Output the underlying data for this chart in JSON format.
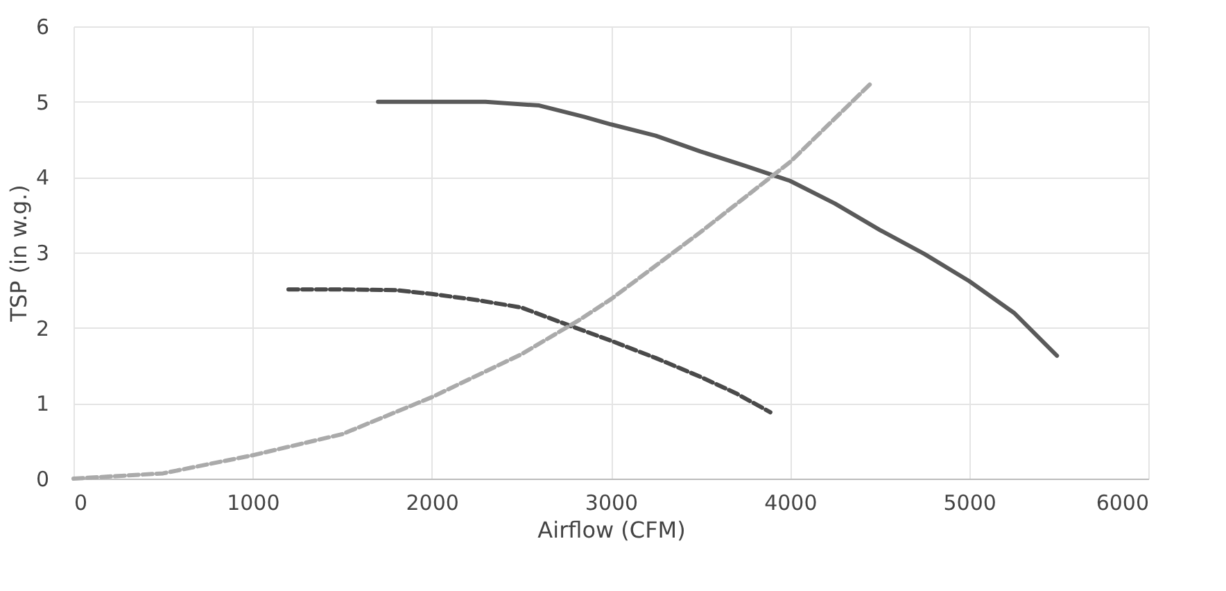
{
  "chart_data": {
    "type": "line",
    "xlabel": "Airflow (CFM)",
    "ylabel": "TSP (in w.g.)",
    "xlim": [
      0,
      6000
    ],
    "ylim": [
      0,
      6
    ],
    "xticks": [
      0,
      1000,
      2000,
      3000,
      4000,
      5000,
      6000
    ],
    "yticks": [
      0,
      1,
      2,
      3,
      4,
      5,
      6
    ],
    "grid": true,
    "legend": false,
    "marker": "none",
    "series": [
      {
        "color": "#5a5a5a",
        "line_style": "solid",
        "x": [
          1700,
          2000,
          2300,
          2600,
          2850,
          3000,
          3250,
          3500,
          3750,
          3900,
          4000,
          4250,
          4500,
          4750,
          5000,
          5250,
          5490
        ],
        "values": [
          5.0,
          5.0,
          5.0,
          4.95,
          4.8,
          4.7,
          4.55,
          4.34,
          4.15,
          4.03,
          3.95,
          3.65,
          3.3,
          2.98,
          2.62,
          2.2,
          1.63
        ]
      },
      {
        "color": "#4a4a4a",
        "line_style": "dashed",
        "x": [
          1200,
          1500,
          1800,
          2000,
          2250,
          2500,
          2770,
          3000,
          3250,
          3500,
          3700,
          3890
        ],
        "values": [
          2.51,
          2.51,
          2.5,
          2.45,
          2.37,
          2.27,
          2.03,
          1.83,
          1.6,
          1.35,
          1.13,
          0.88
        ]
      },
      {
        "color": "#aaaaaa",
        "line_style": "dashed",
        "x": [
          0,
          500,
          1000,
          1500,
          2000,
          2500,
          2820,
          3000,
          3500,
          4000,
          4450
        ],
        "values": [
          0,
          0.07,
          0.31,
          0.59,
          1.08,
          1.65,
          2.1,
          2.38,
          3.27,
          4.2,
          5.24
        ]
      }
    ]
  }
}
